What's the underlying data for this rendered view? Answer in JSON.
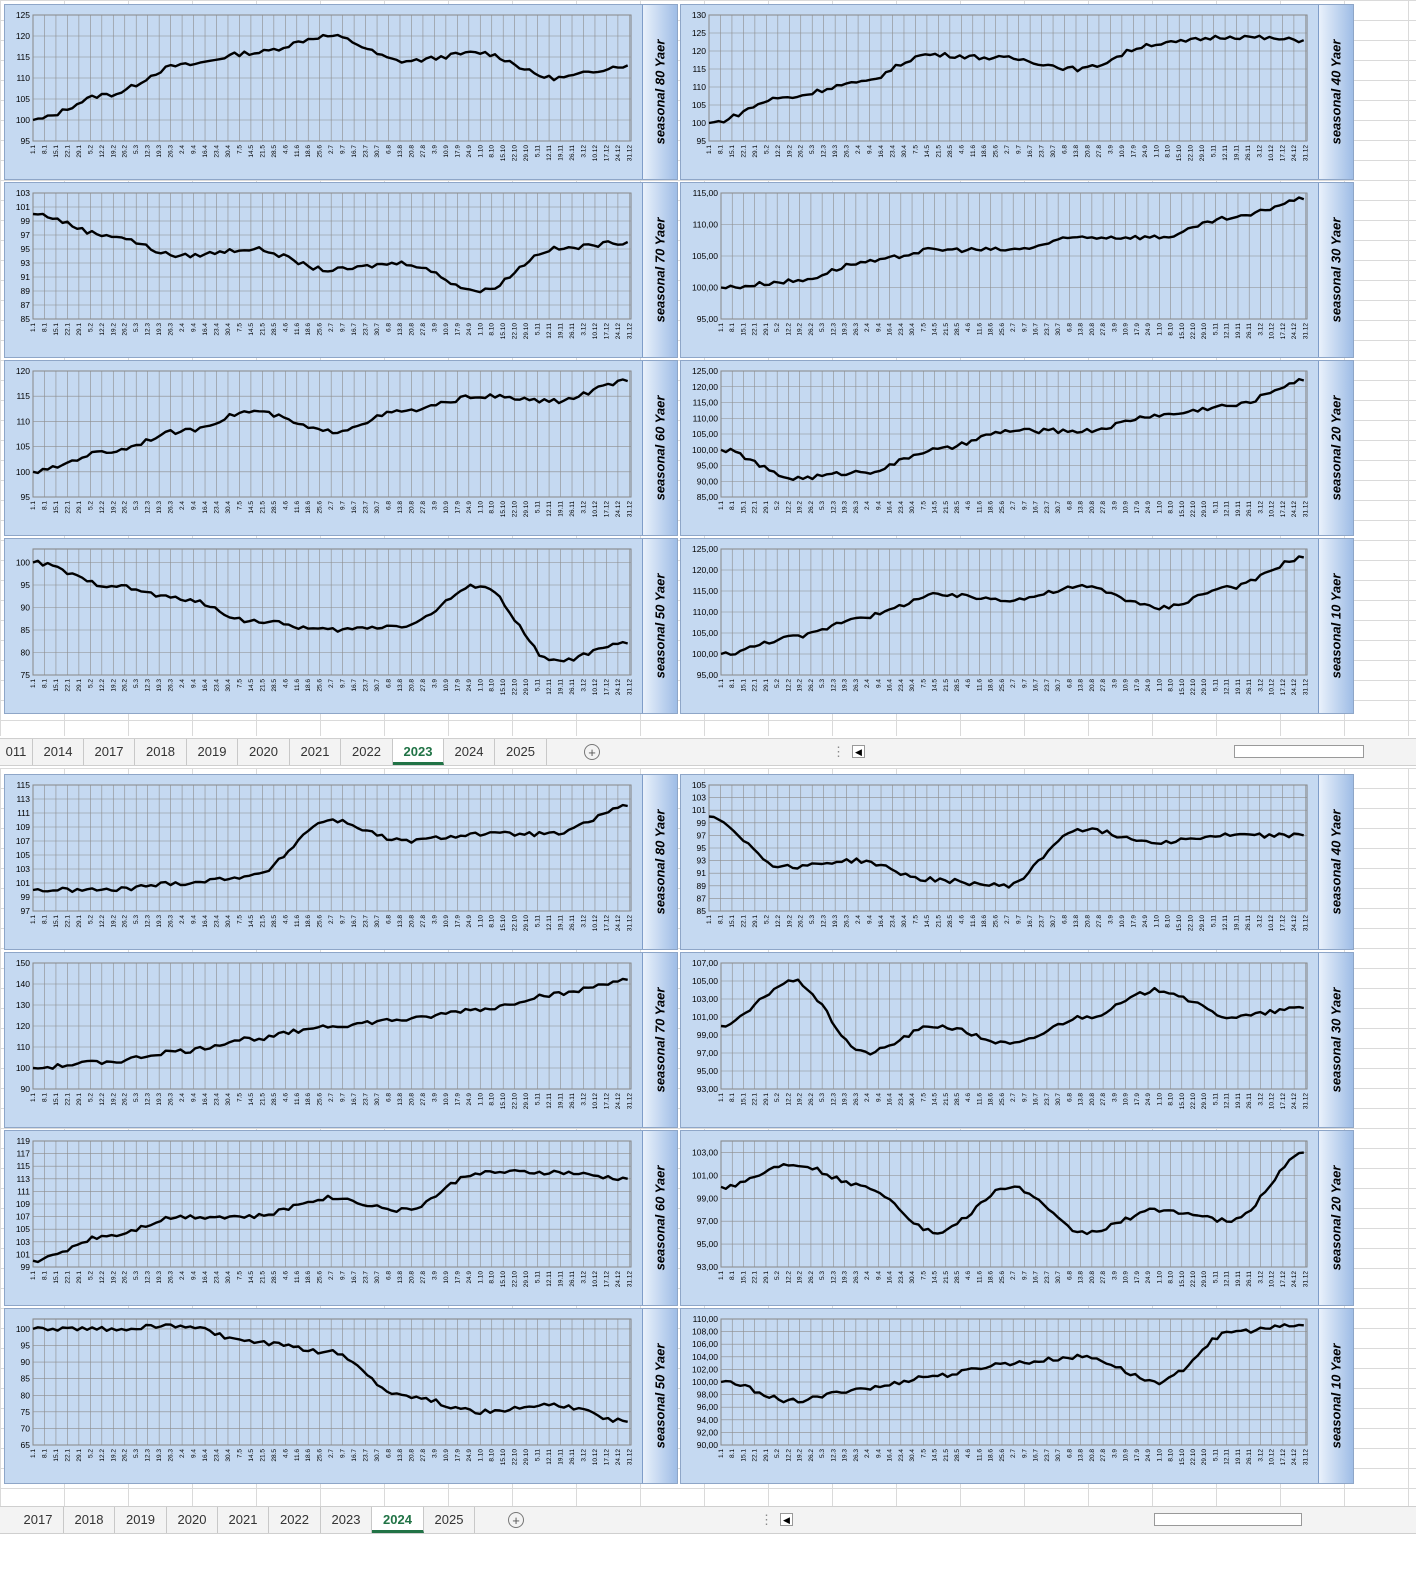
{
  "x_tick_labels": [
    "1.1",
    "8.1",
    "15.1",
    "22.1",
    "29.1",
    "5.2",
    "12.2",
    "19.2",
    "26.2",
    "5.3",
    "12.3",
    "19.3",
    "26.3",
    "2.4",
    "9.4",
    "16.4",
    "23.4",
    "30.4",
    "7.5",
    "14.5",
    "21.5",
    "28.5",
    "4.6",
    "11.6",
    "18.6",
    "25.6",
    "2.7",
    "9.7",
    "16.7",
    "23.7",
    "30.7",
    "6.8",
    "13.8",
    "20.8",
    "27.8",
    "3.9",
    "10.9",
    "17.9",
    "24.9",
    "1.10",
    "8.10",
    "15.10",
    "22.10",
    "29.10",
    "5.11",
    "12.11",
    "19.11",
    "26.11",
    "3.12",
    "10.12",
    "17.12",
    "24.12",
    "31.12"
  ],
  "tabs_top": {
    "items": [
      "011",
      "2014",
      "2017",
      "2018",
      "2019",
      "2020",
      "2021",
      "2022",
      "2023",
      "2024",
      "2025"
    ],
    "active": "2023"
  },
  "tabs_bottom": {
    "items": [
      "2017",
      "2018",
      "2019",
      "2020",
      "2021",
      "2022",
      "2023",
      "2024",
      "2025"
    ],
    "active": "2024"
  },
  "add_sheet_icon": "plus-circle-icon",
  "scroll_left_icon": "triangle-left-icon",
  "chart_data": [
    {
      "sheet": "2023",
      "type": "line",
      "title": "seasonal 80 Yaer",
      "yticks": [
        "95",
        "100",
        "105",
        "110",
        "115",
        "120",
        "125"
      ],
      "ylim": [
        95,
        125
      ],
      "x": [
        "1.1",
        "15.2",
        "1.4",
        "15.5",
        "1.7",
        "15.8",
        "1.10",
        "15.11",
        "31.12"
      ],
      "values": [
        100,
        106,
        113,
        116,
        120,
        114,
        116,
        110,
        113
      ]
    },
    {
      "sheet": "2023",
      "type": "line",
      "title": "seasonal 40 Yaer",
      "yticks": [
        "95",
        "100",
        "105",
        "110",
        "115",
        "120",
        "125",
        "130"
      ],
      "ylim": [
        95,
        130
      ],
      "x": [
        "1.1",
        "15.2",
        "1.4",
        "15.5",
        "1.7",
        "15.8",
        "1.10",
        "15.11",
        "31.12"
      ],
      "values": [
        100,
        107,
        111,
        119,
        118,
        115,
        122,
        124,
        123
      ]
    },
    {
      "sheet": "2023",
      "type": "line",
      "title": "seasonal 70 Yaer",
      "yticks": [
        "85",
        "87",
        "89",
        "91",
        "93",
        "95",
        "97",
        "99",
        "101",
        "103"
      ],
      "ylim": [
        85,
        103
      ],
      "x": [
        "1.1",
        "15.2",
        "1.4",
        "15.5",
        "1.7",
        "15.8",
        "1.10",
        "15.11",
        "31.12"
      ],
      "values": [
        100,
        97,
        94,
        95,
        92,
        93,
        89,
        95,
        96
      ]
    },
    {
      "sheet": "2023",
      "type": "line",
      "title": "seasonal 30 Yaer",
      "yticks": [
        "95,00",
        "100,00",
        "105,00",
        "110,00",
        "115,00"
      ],
      "ylim": [
        95,
        115
      ],
      "x": [
        "1.1",
        "15.2",
        "1.4",
        "15.5",
        "1.7",
        "15.8",
        "1.10",
        "15.11",
        "31.12"
      ],
      "values": [
        100,
        101,
        104,
        106,
        106,
        108,
        108,
        111,
        114
      ]
    },
    {
      "sheet": "2023",
      "type": "line",
      "title": "seasonal 60 Yaer",
      "yticks": [
        "95",
        "100",
        "105",
        "110",
        "115",
        "120"
      ],
      "ylim": [
        95,
        120
      ],
      "x": [
        "1.1",
        "15.2",
        "1.4",
        "15.5",
        "1.7",
        "15.8",
        "1.10",
        "15.11",
        "31.12"
      ],
      "values": [
        100,
        104,
        108,
        112,
        108,
        112,
        115,
        114,
        118
      ]
    },
    {
      "sheet": "2023",
      "type": "line",
      "title": "seasonal 20 Yaer",
      "yticks": [
        "85,00",
        "90,00",
        "95,00",
        "100,00",
        "105,00",
        "110,00",
        "115,00",
        "120,00",
        "125,00"
      ],
      "ylim": [
        85,
        125
      ],
      "x": [
        "1.1",
        "15.2",
        "1.4",
        "15.5",
        "1.7",
        "15.8",
        "1.10",
        "15.11",
        "31.12"
      ],
      "values": [
        100,
        91,
        93,
        100,
        106,
        106,
        111,
        114,
        122
      ]
    },
    {
      "sheet": "2023",
      "type": "line",
      "title": "seasonal 50 Yaer",
      "yticks": [
        "75",
        "80",
        "85",
        "90",
        "95",
        "100"
      ],
      "ylim": [
        75,
        103
      ],
      "x": [
        "1.1",
        "15.2",
        "1.4",
        "15.5",
        "1.7",
        "15.8",
        "1.10",
        "15.11",
        "31.12"
      ],
      "values": [
        100,
        95,
        92,
        87,
        85,
        86,
        95,
        78,
        82
      ]
    },
    {
      "sheet": "2023",
      "type": "line",
      "title": "seasonal 10 Yaer",
      "yticks": [
        "95,00",
        "100,00",
        "105,00",
        "110,00",
        "115,00",
        "120,00",
        "125,00"
      ],
      "ylim": [
        95,
        125
      ],
      "x": [
        "1.1",
        "15.2",
        "1.4",
        "15.5",
        "1.7",
        "15.8",
        "1.10",
        "15.11",
        "31.12"
      ],
      "values": [
        100,
        104,
        109,
        114,
        113,
        116,
        111,
        116,
        123
      ]
    },
    {
      "sheet": "2024",
      "type": "line",
      "title": "seasonal 80 Yaer",
      "yticks": [
        "97",
        "99",
        "101",
        "103",
        "105",
        "107",
        "109",
        "111",
        "113",
        "115"
      ],
      "ylim": [
        97,
        115
      ],
      "x": [
        "1.1",
        "15.2",
        "1.4",
        "15.5",
        "1.7",
        "15.8",
        "1.10",
        "15.11",
        "31.12"
      ],
      "values": [
        100,
        100,
        101,
        102,
        110,
        107,
        108,
        108,
        112
      ]
    },
    {
      "sheet": "2024",
      "type": "line",
      "title": "seasonal 40 Yaer",
      "yticks": [
        "85",
        "87",
        "89",
        "91",
        "93",
        "95",
        "97",
        "99",
        "101",
        "103",
        "105"
      ],
      "ylim": [
        85,
        105
      ],
      "x": [
        "1.1",
        "15.2",
        "1.4",
        "15.5",
        "1.7",
        "15.8",
        "1.10",
        "15.11",
        "31.12"
      ],
      "values": [
        100,
        92,
        93,
        90,
        89,
        98,
        96,
        97,
        97
      ]
    },
    {
      "sheet": "2024",
      "type": "line",
      "title": "seasonal 70 Yaer",
      "yticks": [
        "90",
        "100",
        "110",
        "120",
        "130",
        "140",
        "150"
      ],
      "ylim": [
        90,
        150
      ],
      "x": [
        "1.1",
        "15.2",
        "1.4",
        "15.5",
        "1.7",
        "15.8",
        "1.10",
        "15.11",
        "31.12"
      ],
      "values": [
        100,
        103,
        108,
        114,
        120,
        123,
        128,
        135,
        142
      ]
    },
    {
      "sheet": "2024",
      "type": "line",
      "title": "seasonal 30 Yaer",
      "yticks": [
        "93,00",
        "95,00",
        "97,00",
        "99,00",
        "101,00",
        "103,00",
        "105,00",
        "107,00"
      ],
      "ylim": [
        93,
        107
      ],
      "x": [
        "1.1",
        "15.2",
        "1.4",
        "15.5",
        "1.7",
        "15.8",
        "1.10",
        "15.11",
        "31.12"
      ],
      "values": [
        100,
        105,
        97,
        100,
        98,
        101,
        104,
        101,
        102
      ]
    },
    {
      "sheet": "2024",
      "type": "line",
      "title": "seasonal 60 Yaer",
      "yticks": [
        "99",
        "101",
        "103",
        "105",
        "107",
        "109",
        "111",
        "113",
        "115",
        "117",
        "119"
      ],
      "ylim": [
        99,
        119
      ],
      "x": [
        "1.1",
        "15.2",
        "1.4",
        "15.5",
        "1.7",
        "15.8",
        "1.10",
        "15.11",
        "31.12"
      ],
      "values": [
        100,
        104,
        107,
        107,
        110,
        108,
        114,
        114,
        113
      ]
    },
    {
      "sheet": "2024",
      "type": "line",
      "title": "seasonal 20 Yaer",
      "yticks": [
        "93,00",
        "95,00",
        "97,00",
        "99,00",
        "101,00",
        "103,00"
      ],
      "ylim": [
        93,
        104
      ],
      "x": [
        "1.1",
        "15.2",
        "1.4",
        "15.5",
        "1.7",
        "15.8",
        "1.10",
        "15.11",
        "31.12"
      ],
      "values": [
        100,
        102,
        100,
        96,
        100,
        96,
        98,
        97,
        103
      ]
    },
    {
      "sheet": "2024",
      "type": "line",
      "title": "seasonal 50 Yaer",
      "yticks": [
        "65",
        "70",
        "75",
        "80",
        "85",
        "90",
        "95",
        "100"
      ],
      "ylim": [
        65,
        103
      ],
      "x": [
        "1.1",
        "15.2",
        "1.4",
        "15.5",
        "1.7",
        "15.8",
        "1.10",
        "15.11",
        "31.12"
      ],
      "values": [
        100,
        100,
        101,
        96,
        93,
        80,
        75,
        77,
        72
      ]
    },
    {
      "sheet": "2024",
      "type": "line",
      "title": "seasonal 10 Yaer",
      "yticks": [
        "90,00",
        "92,00",
        "94,00",
        "96,00",
        "98,00",
        "100,00",
        "102,00",
        "104,00",
        "106,00",
        "108,00",
        "110,00"
      ],
      "ylim": [
        90,
        110
      ],
      "x": [
        "1.1",
        "15.2",
        "1.4",
        "15.5",
        "1.7",
        "15.8",
        "1.10",
        "15.11",
        "31.12"
      ],
      "values": [
        100,
        97,
        99,
        101,
        103,
        104,
        100,
        108,
        109
      ]
    }
  ]
}
